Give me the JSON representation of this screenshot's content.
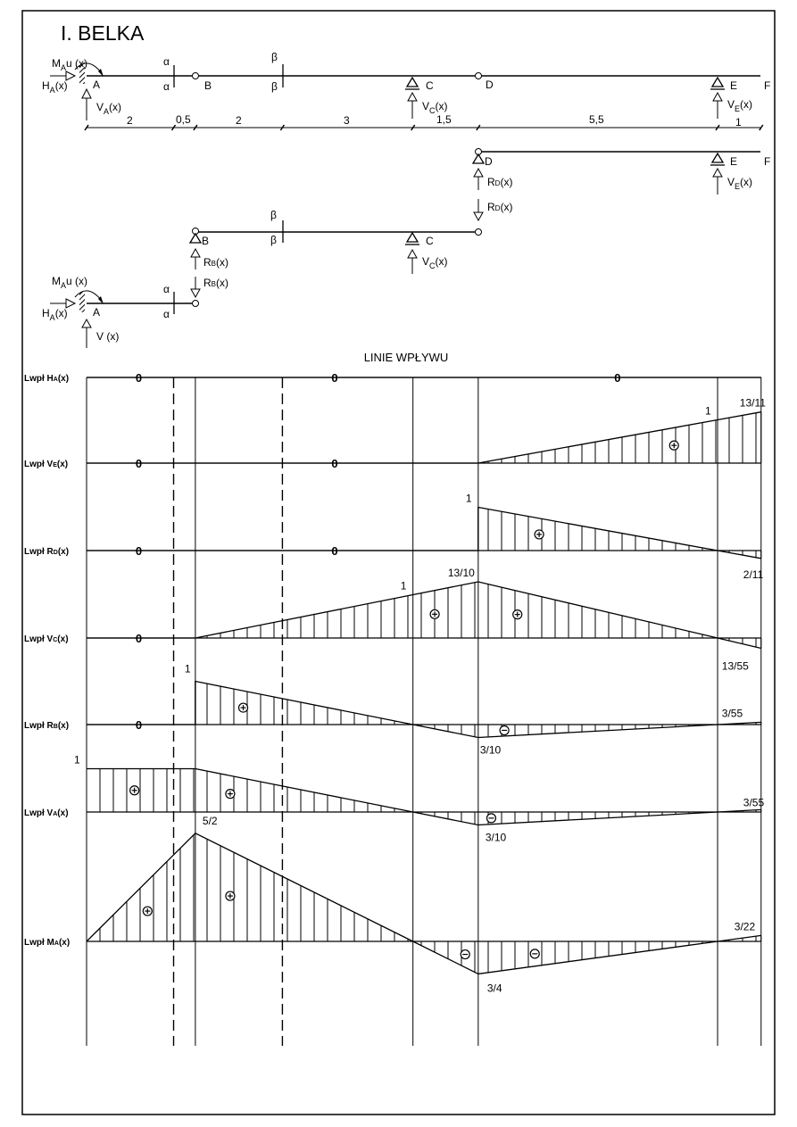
{
  "title": "I. BELKA",
  "scheme": {
    "points": {
      "A": "A",
      "B": "B",
      "C": "C",
      "D": "D",
      "E": "E",
      "F": "F"
    },
    "sections": {
      "alpha": "α",
      "beta": "β"
    },
    "forces": {
      "M_A": {
        "main": "M",
        "sub": "A",
        "rest": "u (x)"
      },
      "H_A": {
        "main": "H",
        "sub": "A",
        "rest": "(x)"
      },
      "V_A": {
        "main": "V",
        "sub": "A",
        "rest": "(x)"
      },
      "V_A_short": "V (x)",
      "V_C": {
        "main": "V",
        "sub": "C",
        "rest": "(x)"
      },
      "V_E": {
        "main": "V",
        "sub": "E",
        "rest": "(x)"
      },
      "R_D": {
        "main": "R",
        "sub": "D",
        "rest": "(x)"
      },
      "R_B": {
        "main": "R",
        "sub": "B",
        "rest": "(x)"
      }
    },
    "dimensions": [
      "2",
      "0,5",
      "2",
      "3",
      "1,5",
      "5,5",
      "1"
    ]
  },
  "influence_title": "LINIE WPŁYWU",
  "beam_positions_m": {
    "A": 0,
    "alpha": 2,
    "B": 2.5,
    "beta": 4.5,
    "C": 7.5,
    "D": 9,
    "E": 14.5,
    "F": 15.5
  },
  "influence_lines": [
    {
      "label": {
        "main": "Lwpł H",
        "sub": "A",
        "rest": "(x)"
      },
      "points": [
        [
          0,
          0
        ],
        [
          15.5,
          0
        ]
      ],
      "zeros": [
        1.2,
        5.7,
        12.2
      ],
      "annotations": [],
      "signs": []
    },
    {
      "label": {
        "main": "Lwpł V",
        "sub": "E",
        "rest": "(x)"
      },
      "points": [
        [
          0,
          0
        ],
        [
          9,
          0
        ],
        [
          14.5,
          1
        ],
        [
          15.5,
          1.1818
        ]
      ],
      "zeros": [
        1.2,
        5.7
      ],
      "annotations": [
        {
          "text": "1",
          "at": [
            14.5,
            1
          ]
        },
        {
          "text": "13/11",
          "at": [
            15.5,
            1.1818
          ]
        }
      ],
      "signs": [
        {
          "sign": "+",
          "at": 13.5
        }
      ]
    },
    {
      "label": {
        "main": "Lwpł R",
        "sub": "D",
        "rest": "(x)"
      },
      "points": [
        [
          0,
          0
        ],
        [
          9,
          0
        ],
        [
          9,
          1
        ],
        [
          14.5,
          0
        ],
        [
          15.5,
          -0.1818
        ]
      ],
      "zeros": [
        1.2,
        5.7
      ],
      "annotations": [
        {
          "text": "1",
          "at": [
            9,
            1
          ]
        },
        {
          "text": "2/11",
          "at": [
            15.5,
            -0.1818
          ]
        }
      ],
      "signs": [
        {
          "sign": "+",
          "at": 10.4
        }
      ]
    },
    {
      "label": {
        "main": "Lwpł V",
        "sub": "C",
        "rest": "(x)"
      },
      "points": [
        [
          0,
          0
        ],
        [
          2.5,
          0
        ],
        [
          7.5,
          1
        ],
        [
          9,
          1.3
        ],
        [
          14.5,
          0
        ],
        [
          15.5,
          -0.2364
        ]
      ],
      "zeros": [
        1.2
      ],
      "annotations": [
        {
          "text": "1",
          "at": [
            7.5,
            1
          ]
        },
        {
          "text": "13/10",
          "at": [
            9,
            1.3
          ]
        },
        {
          "text": "13/55",
          "at": [
            15.5,
            -0.2364
          ]
        }
      ],
      "signs": [
        {
          "sign": "+",
          "at": 8
        },
        {
          "sign": "+",
          "at": 9.9
        }
      ]
    },
    {
      "label": {
        "main": "Lwpł R",
        "sub": "B",
        "rest": "(x)"
      },
      "points": [
        [
          0,
          0
        ],
        [
          2.5,
          0
        ],
        [
          2.5,
          1
        ],
        [
          7.5,
          0
        ],
        [
          9,
          -0.3
        ],
        [
          14.5,
          0
        ],
        [
          15.5,
          0.0545
        ]
      ],
      "zeros": [
        1.2
      ],
      "annotations": [
        {
          "text": "1",
          "at": [
            2.5,
            1
          ]
        },
        {
          "text": "3/10",
          "at": [
            9,
            -0.3
          ]
        },
        {
          "text": "3/55",
          "at": [
            15.5,
            0.0545
          ]
        }
      ],
      "signs": [
        {
          "sign": "+",
          "at": 3.6
        },
        {
          "sign": "-",
          "at": 9.6
        }
      ]
    },
    {
      "label": {
        "main": "Lwpł V",
        "sub": "A",
        "rest": "(x)"
      },
      "points": [
        [
          0,
          1
        ],
        [
          2.5,
          1
        ],
        [
          7.5,
          0
        ],
        [
          9,
          -0.3
        ],
        [
          14.5,
          0
        ],
        [
          15.5,
          0.0545
        ]
      ],
      "zeros": [],
      "annotations": [
        {
          "text": "1",
          "at": [
            0,
            1
          ]
        },
        {
          "text": "3/10",
          "at": [
            9,
            -0.3
          ]
        },
        {
          "text": "3/55",
          "at": [
            15.5,
            0.0545
          ]
        }
      ],
      "signs": [
        {
          "sign": "+",
          "at": 1.1
        },
        {
          "sign": "+",
          "at": 3.3
        },
        {
          "sign": "-",
          "at": 9.3
        }
      ]
    },
    {
      "label": {
        "main": "Lwpł M",
        "sub": "A",
        "rest": "(x)"
      },
      "points": [
        [
          0,
          0
        ],
        [
          2.5,
          2.5
        ],
        [
          7.5,
          0
        ],
        [
          9,
          -0.75
        ],
        [
          14.5,
          0
        ],
        [
          15.5,
          0.1364
        ]
      ],
      "zeros": [],
      "annotations": [
        {
          "text": "5/2",
          "at": [
            2.5,
            2.5
          ]
        },
        {
          "text": "3/4",
          "at": [
            9,
            -0.75
          ]
        },
        {
          "text": "3/22",
          "at": [
            15.5,
            0.1364
          ]
        }
      ],
      "signs": [
        {
          "sign": "+",
          "at": 1.4
        },
        {
          "sign": "+",
          "at": 3.3
        },
        {
          "sign": "-",
          "at": 8.7
        },
        {
          "sign": "-",
          "at": 10.3
        }
      ]
    }
  ]
}
